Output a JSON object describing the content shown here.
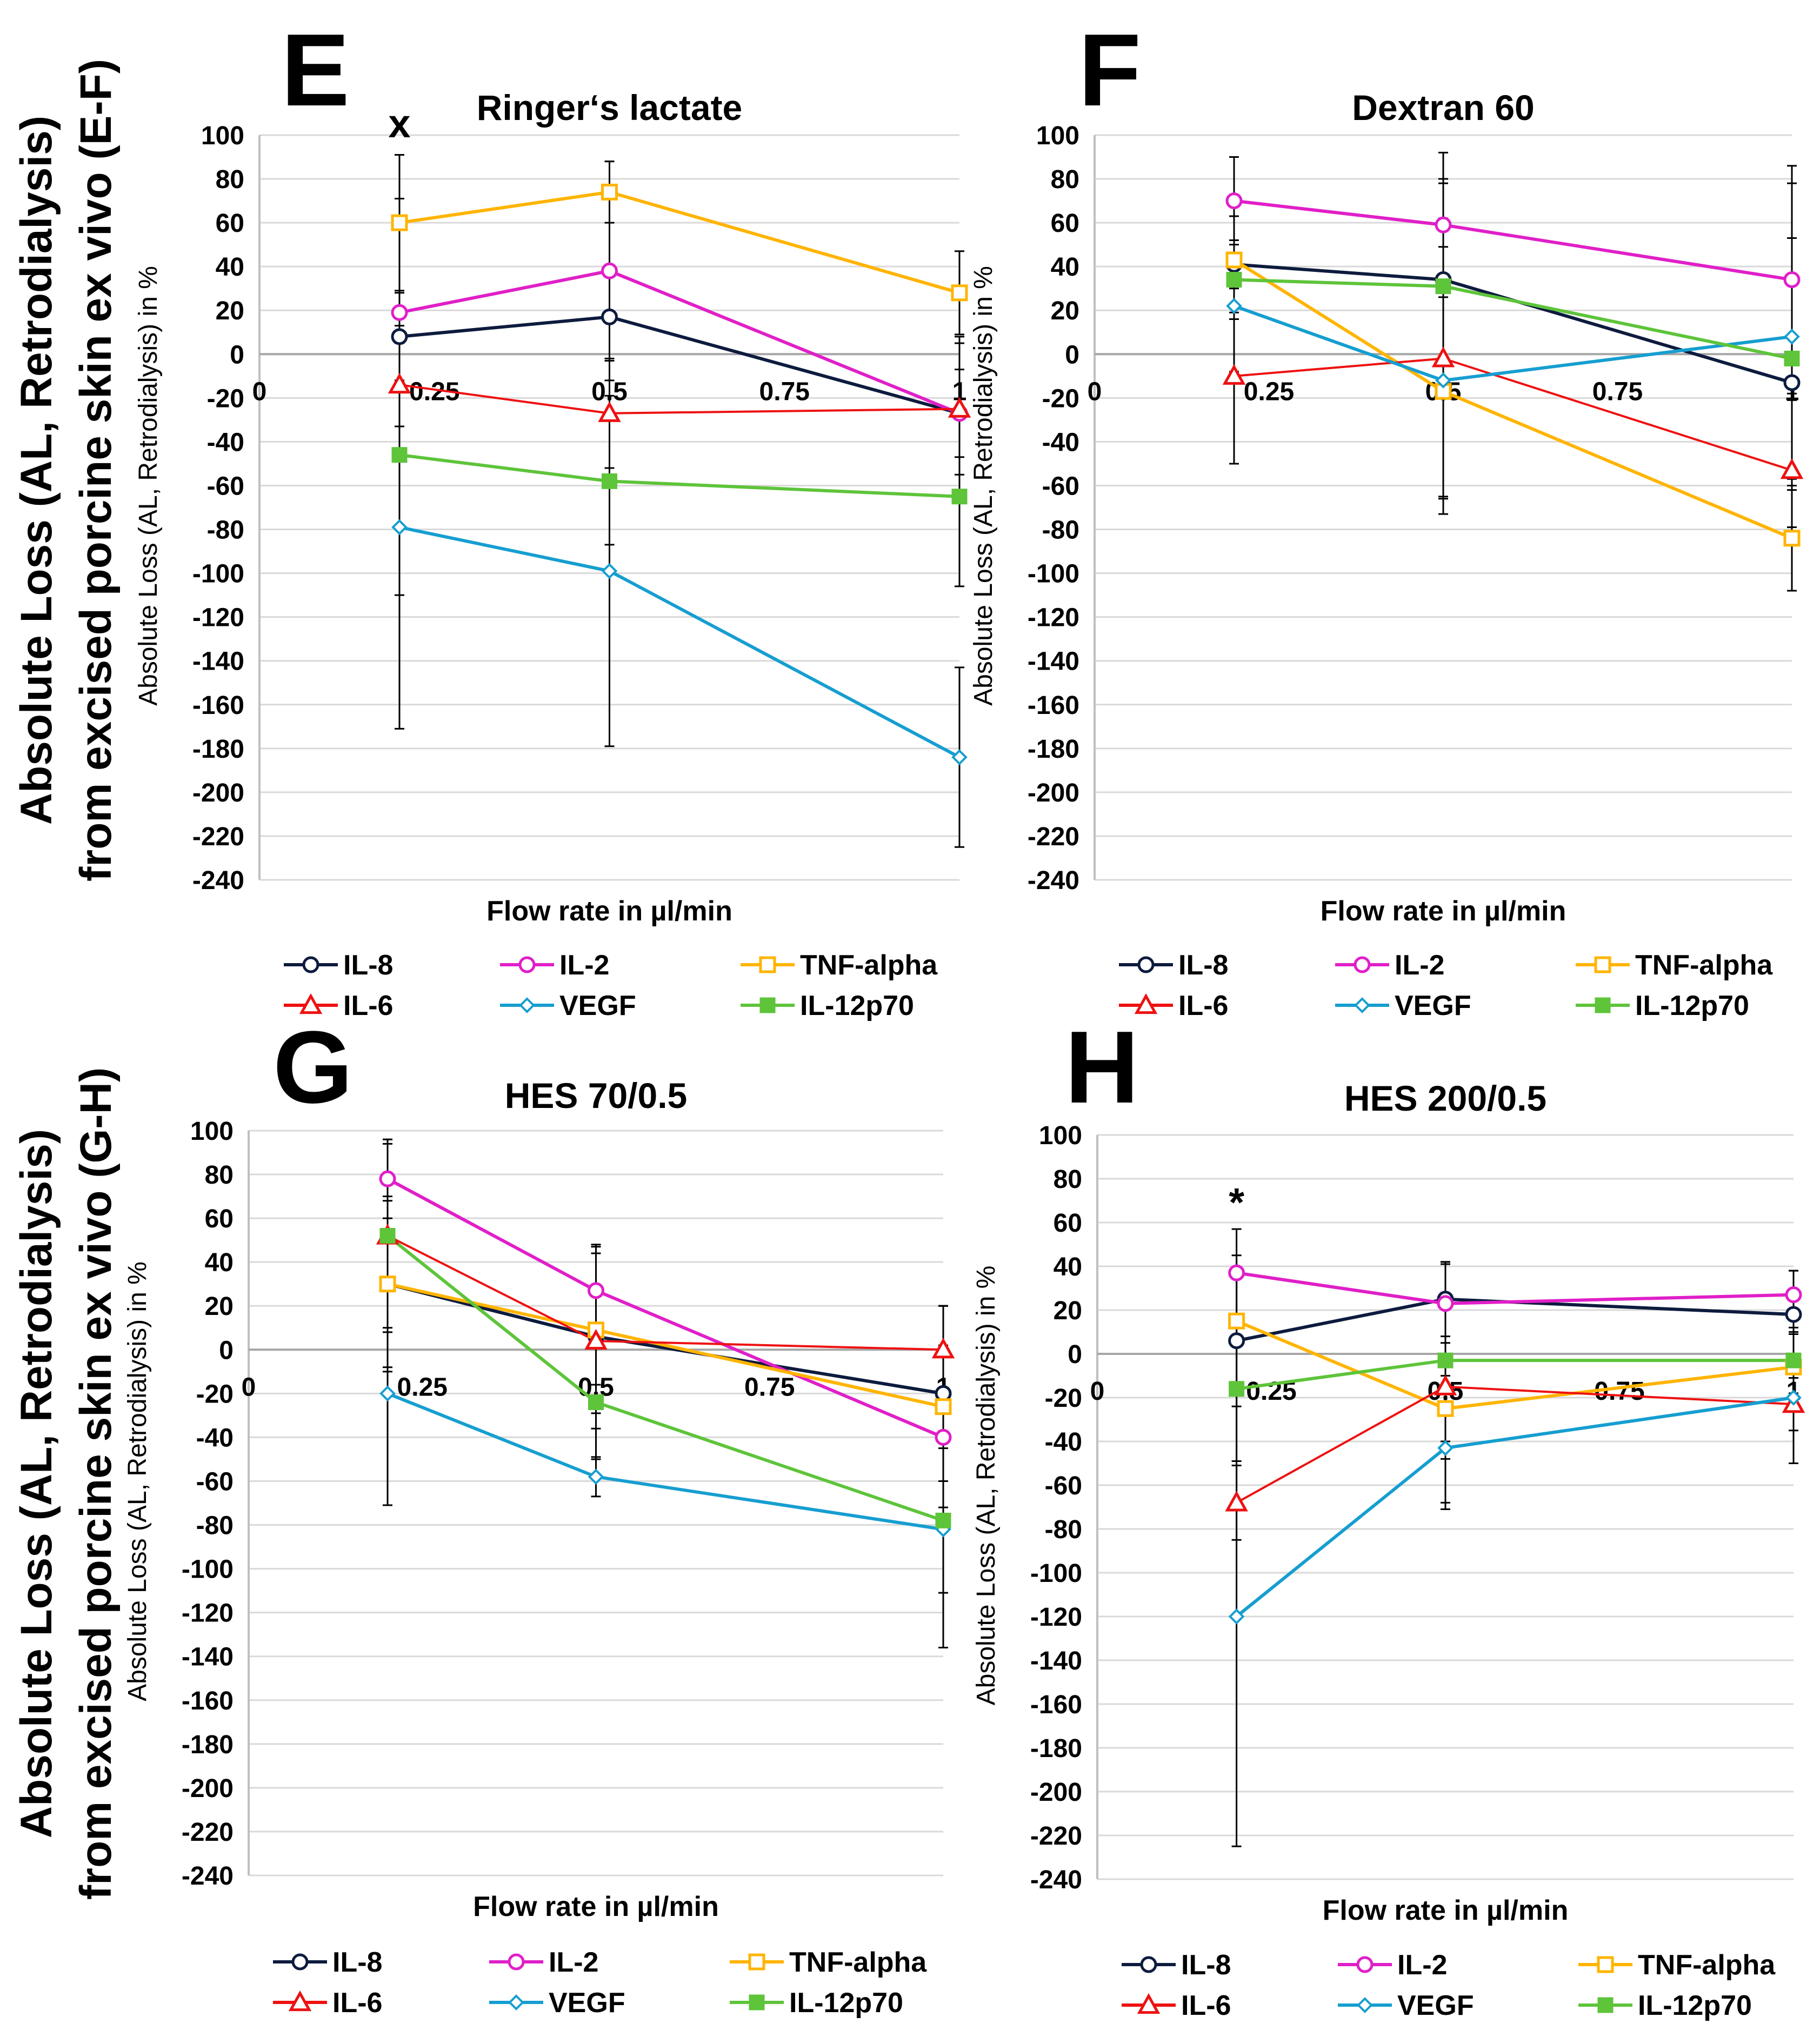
{
  "figure": {
    "ylabel_top": [
      "Absolute Loss (AL, Retrodialysis)",
      "from excised porcine skin ex vivo (E-F)"
    ],
    "ylabel_bottom": [
      "Absolute Loss (AL, Retrodialysis)",
      "from excised porcine skin ex vivo (G-H)"
    ],
    "colors": {
      "IL-8": "#0d1b3e",
      "IL-2": "#e01fc8",
      "TNF-alpha": "#ffb400",
      "IL-6": "#ee1111",
      "VEGF": "#169ed0",
      "IL-12p70": "#5ec43a"
    }
  },
  "chart_data": [
    {
      "type": "line",
      "panel": "E",
      "title": "Ringer‘s lactate",
      "xlabel": "Flow rate in µl/min",
      "ylabel": "Absolute Loss (AL, Retrodialysis) in %",
      "xlim": [
        0,
        1
      ],
      "ylim": [
        -240,
        100
      ],
      "xticks": [
        "0",
        "0.25",
        "0.5",
        "0.75",
        "1"
      ],
      "yticks": [
        "100",
        "80",
        "60",
        "40",
        "20",
        "0",
        "-20",
        "-40",
        "-60",
        "-80",
        "-100",
        "-120",
        "-140",
        "-160",
        "-180",
        "-200",
        "-220",
        "-240"
      ],
      "x": [
        0.2,
        0.5,
        1.0
      ],
      "annotation": {
        "text": "x",
        "x": 0.2,
        "y": 99
      },
      "legend": [
        "IL-8",
        "IL-2",
        "TNF-alpha",
        "IL-6",
        "VEGF",
        "IL-12p70"
      ],
      "series": [
        {
          "name": "IL-8",
          "values": [
            8,
            17,
            -27
          ],
          "err": [
            20,
            20,
            35
          ]
        },
        {
          "name": "IL-2",
          "values": [
            19,
            38,
            -27
          ],
          "err": [
            52,
            50,
            20
          ]
        },
        {
          "name": "TNF-alpha",
          "values": [
            60,
            74,
            28
          ],
          "err": [
            31,
            14,
            19
          ]
        },
        {
          "name": "IL-6",
          "values": [
            -14,
            -27,
            -25
          ],
          "err": [
            19,
            25,
            30
          ]
        },
        {
          "name": "VEGF",
          "values": [
            -79,
            -99,
            -184
          ],
          "err": [
            92,
            80,
            41
          ]
        },
        {
          "name": "IL-12p70",
          "values": [
            -46,
            -58,
            -65
          ],
          "err": [
            64,
            29,
            41
          ]
        }
      ]
    },
    {
      "type": "line",
      "panel": "F",
      "title": "Dextran 60",
      "xlabel": "Flow rate in µl/min",
      "ylabel": "Absolute Loss (AL, Retrodialysis) in %",
      "xlim": [
        0,
        1
      ],
      "ylim": [
        -240,
        100
      ],
      "xticks": [
        "0",
        "0.25",
        "0.5",
        "0.75",
        "1"
      ],
      "yticks": [
        "100",
        "80",
        "60",
        "40",
        "20",
        "0",
        "-20",
        "-40",
        "-60",
        "-80",
        "-100",
        "-120",
        "-140",
        "-160",
        "-180",
        "-200",
        "-220",
        "-240"
      ],
      "x": [
        0.2,
        0.5,
        1.0
      ],
      "legend": [
        "IL-8",
        "IL-2",
        "TNF-alpha",
        "IL-6",
        "VEGF",
        "IL-12p70"
      ],
      "series": [
        {
          "name": "IL-8",
          "values": [
            41,
            34,
            -13
          ],
          "err": [
            22,
            46,
            66
          ]
        },
        {
          "name": "IL-2",
          "values": [
            70,
            59,
            34
          ],
          "err": [
            20,
            33,
            52
          ]
        },
        {
          "name": "TNF-alpha",
          "values": [
            43,
            -17,
            -84
          ],
          "err": [
            20,
            48,
            24
          ]
        },
        {
          "name": "IL-6",
          "values": [
            -10,
            -2,
            -53
          ],
          "err": [
            40,
            64,
            32
          ]
        },
        {
          "name": "VEGF",
          "values": [
            22,
            -12,
            8
          ],
          "err": [
            30,
            61,
            70
          ]
        },
        {
          "name": "IL-12p70",
          "values": [
            34,
            31,
            -2
          ],
          "err": [
            18,
            47,
            55
          ]
        }
      ]
    },
    {
      "type": "line",
      "panel": "G",
      "title": "HES 70/0.5",
      "xlabel": "Flow rate in µl/min",
      "ylabel": "Absolute Loss (AL, Retrodialysis) in %",
      "xlim": [
        0,
        1
      ],
      "ylim": [
        -240,
        100
      ],
      "xticks": [
        "0",
        "0.25",
        "0.5",
        "0.75",
        "1"
      ],
      "yticks": [
        "100",
        "80",
        "60",
        "40",
        "20",
        "0",
        "-20",
        "-40",
        "-60",
        "-80",
        "-100",
        "-120",
        "-140",
        "-160",
        "-180",
        "-200",
        "-220",
        "-240"
      ],
      "x": [
        0.2,
        0.5,
        1.0
      ],
      "legend": [
        "IL-8",
        "IL-2",
        "TNF-alpha",
        "IL-6",
        "VEGF",
        "IL-12p70"
      ],
      "series": [
        {
          "name": "IL-8",
          "values": [
            30,
            6,
            -20
          ],
          "err": [
            38,
            22,
            40
          ]
        },
        {
          "name": "IL-2",
          "values": [
            78,
            27,
            -40
          ],
          "err": [
            18,
            21,
            42
          ]
        },
        {
          "name": "TNF-alpha",
          "values": [
            30,
            9,
            -26
          ],
          "err": [
            40,
            38,
            46
          ]
        },
        {
          "name": "IL-6",
          "values": [
            52,
            4,
            0
          ],
          "err": [
            44,
            40,
            20
          ]
        },
        {
          "name": "VEGF",
          "values": [
            -20,
            -58,
            -82
          ],
          "err": [
            51,
            9,
            54
          ]
        },
        {
          "name": "IL-12p70",
          "values": [
            52,
            -24,
            -78
          ],
          "err": [
            42,
            26,
            33
          ]
        }
      ]
    },
    {
      "type": "line",
      "panel": "H",
      "title": "HES 200/0.5",
      "xlabel": "Flow rate in µl/min",
      "ylabel": "Absolute Loss (AL, Retrodialysis) in %",
      "xlim": [
        0,
        1
      ],
      "ylim": [
        -240,
        100
      ],
      "xticks": [
        "0",
        "0.25",
        "0.5",
        "0.75",
        "1"
      ],
      "yticks": [
        "100",
        "80",
        "60",
        "40",
        "20",
        "0",
        "-20",
        "-40",
        "-60",
        "-80",
        "-100",
        "-120",
        "-140",
        "-160",
        "-180",
        "-200",
        "-220",
        "-240"
      ],
      "x": [
        0.2,
        0.5,
        1.0
      ],
      "annotation": {
        "text": "*",
        "x": 0.2,
        "y": 63
      },
      "legend": [
        "IL-8",
        "IL-2",
        "TNF-alpha",
        "IL-6",
        "VEGF",
        "IL-12p70"
      ],
      "series": [
        {
          "name": "IL-8",
          "values": [
            6,
            25,
            18
          ],
          "err": [
            30,
            17,
            20
          ]
        },
        {
          "name": "IL-2",
          "values": [
            37,
            23,
            27
          ],
          "err": [
            20,
            18,
            11
          ]
        },
        {
          "name": "TNF-alpha",
          "values": [
            15,
            -25,
            -6
          ],
          "err": [
            30,
            15,
            15
          ]
        },
        {
          "name": "IL-6",
          "values": [
            -68,
            -15,
            -23
          ],
          "err": [
            17,
            56,
            12
          ]
        },
        {
          "name": "VEGF",
          "values": [
            -120,
            -43,
            -20
          ],
          "err": [
            105,
            25,
            30
          ]
        },
        {
          "name": "IL-12p70",
          "values": [
            -16,
            -3,
            -3
          ],
          "err": [
            33,
            45,
            15
          ]
        }
      ]
    }
  ]
}
